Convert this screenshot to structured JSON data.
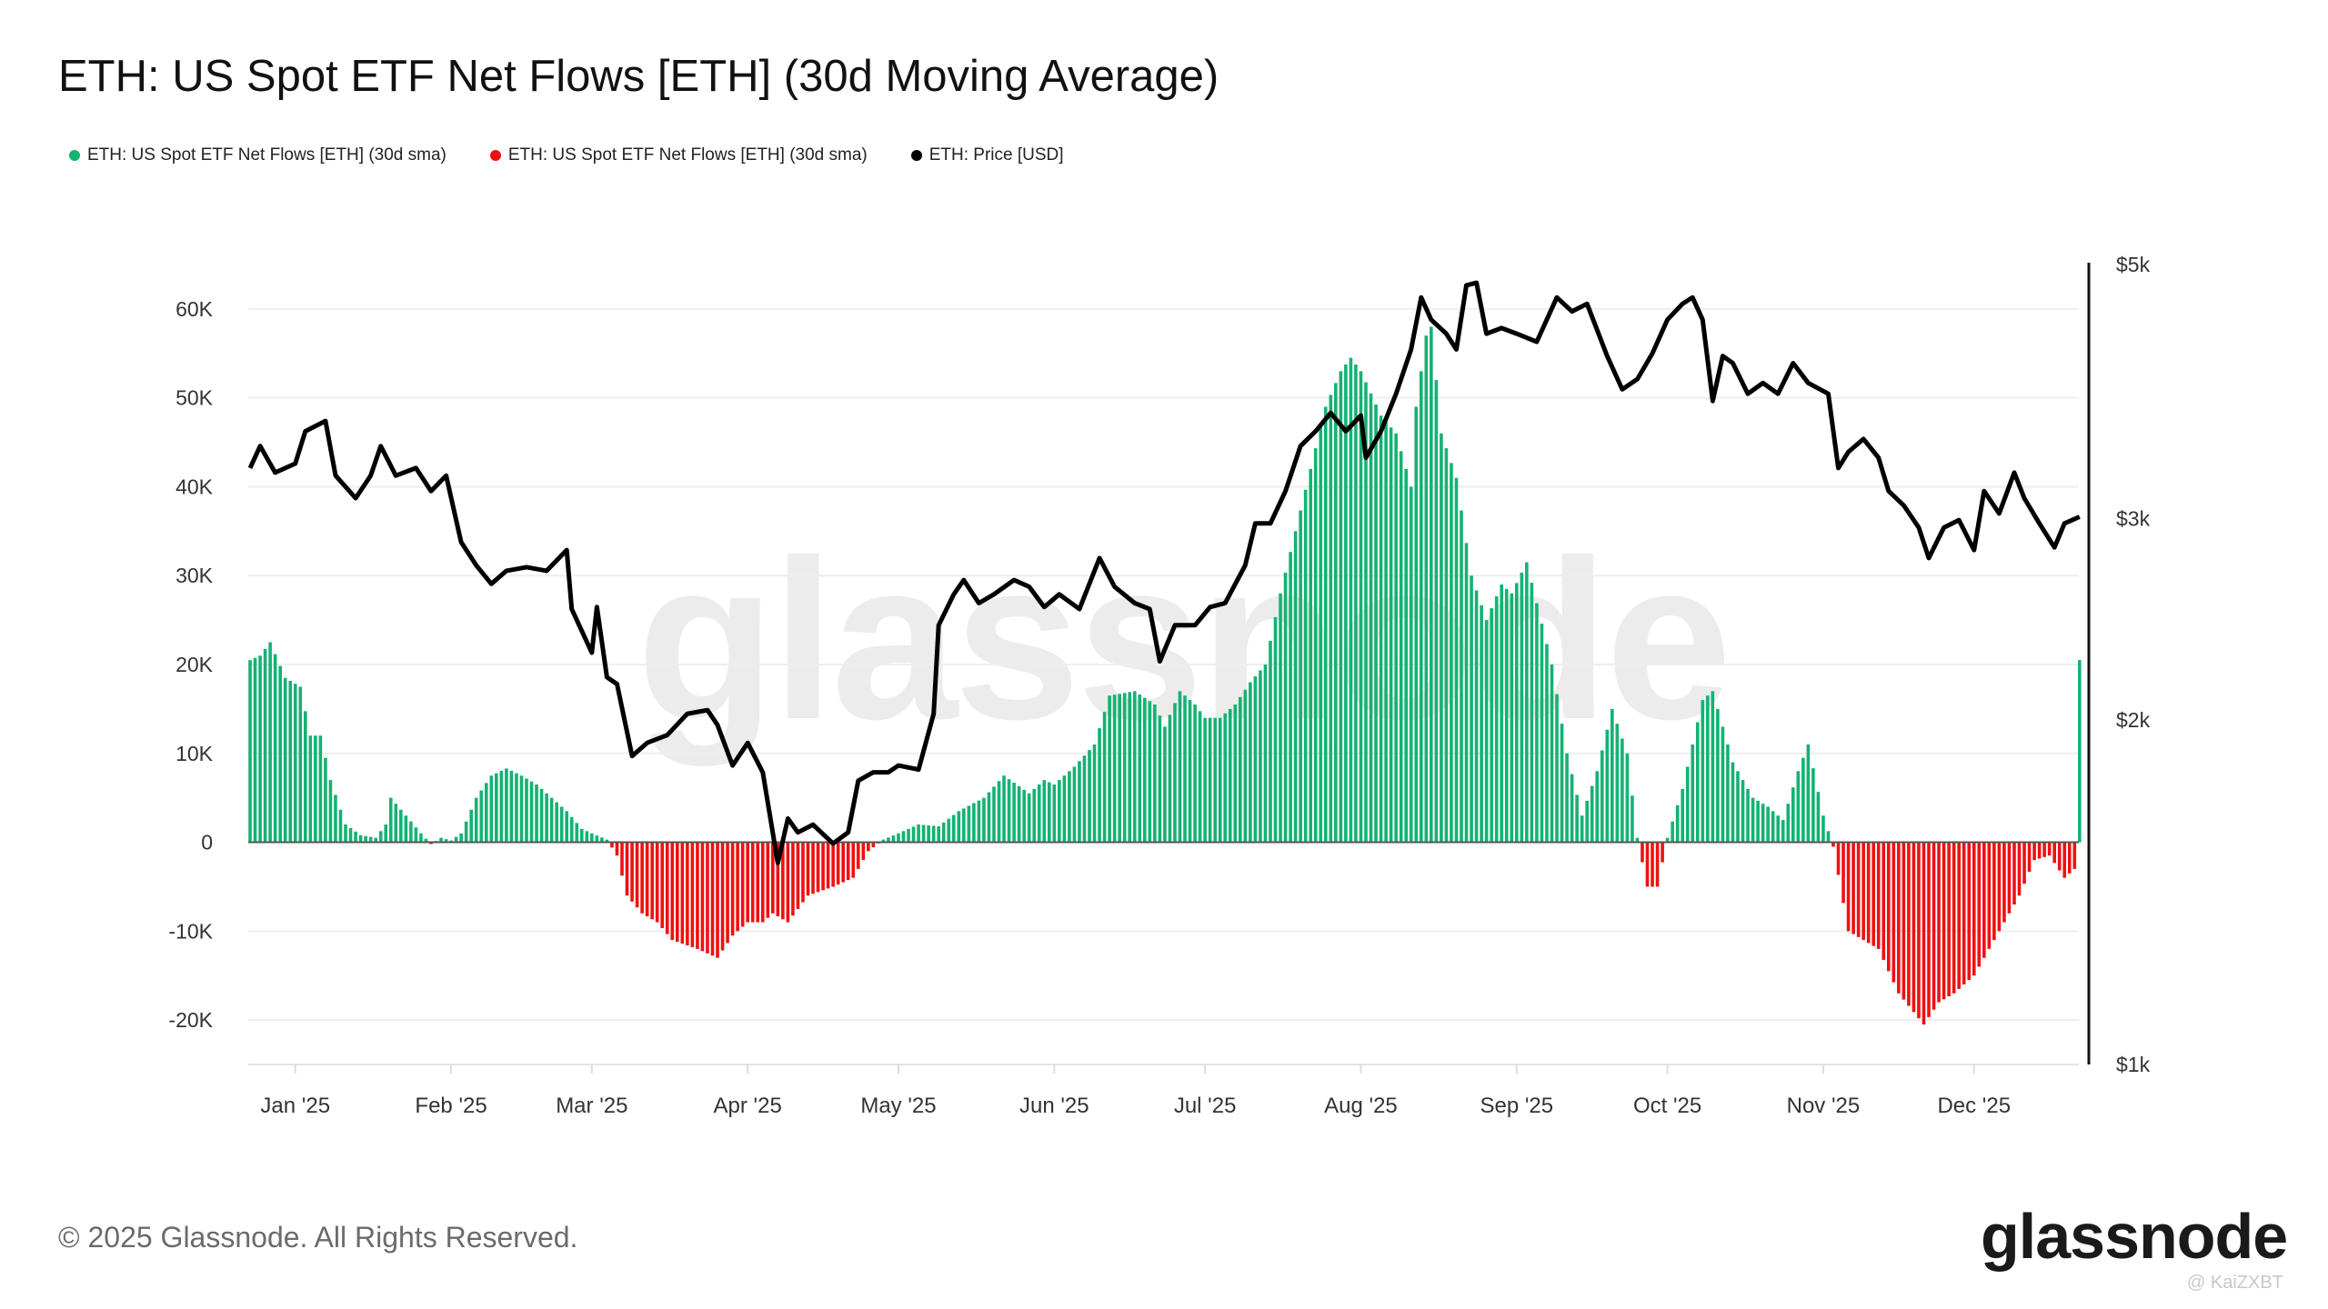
{
  "chart_data": {
    "type": "bar+line",
    "title": "ETH: US Spot ETF Net Flows [ETH] (30d Moving Average)",
    "legend": [
      {
        "label": "ETH: US Spot ETF Net Flows [ETH] (30d sma)",
        "color": "#14b273"
      },
      {
        "label": "ETH: US Spot ETF Net Flows [ETH] (30d sma)",
        "color": "#ee1111"
      },
      {
        "label": "ETH: Price [USD]",
        "color": "#000000"
      }
    ],
    "legend_placement": "top-left",
    "grid": true,
    "y_left": {
      "range": [
        -25000,
        65000
      ],
      "ticks": [
        {
          "value": 60000,
          "label": "60K"
        },
        {
          "value": 50000,
          "label": "50K"
        },
        {
          "value": 40000,
          "label": "40K"
        },
        {
          "value": 30000,
          "label": "30K"
        },
        {
          "value": 20000,
          "label": "20K"
        },
        {
          "value": 10000,
          "label": "10K"
        },
        {
          "value": 0,
          "label": "0"
        },
        {
          "value": -10000,
          "label": "-10K"
        },
        {
          "value": -20000,
          "label": "-20K"
        }
      ]
    },
    "y_right": {
      "scale": "log",
      "range": [
        1000,
        5000
      ],
      "ticks": [
        {
          "value": 5000,
          "label": "$5k"
        },
        {
          "value": 3000,
          "label": "$3k"
        },
        {
          "value": 2000,
          "label": "$2k"
        },
        {
          "value": 1000,
          "label": "$1k"
        }
      ]
    },
    "x_ticks": [
      {
        "date": "2025-01-01",
        "label": "Jan '25"
      },
      {
        "date": "2025-02-01",
        "label": "Feb '25"
      },
      {
        "date": "2025-03-01",
        "label": "Mar '25"
      },
      {
        "date": "2025-04-01",
        "label": "Apr '25"
      },
      {
        "date": "2025-05-01",
        "label": "May '25"
      },
      {
        "date": "2025-06-01",
        "label": "Jun '25"
      },
      {
        "date": "2025-07-01",
        "label": "Jul '25"
      },
      {
        "date": "2025-08-01",
        "label": "Aug '25"
      },
      {
        "date": "2025-09-01",
        "label": "Sep '25"
      },
      {
        "date": "2025-10-01",
        "label": "Oct '25"
      },
      {
        "date": "2025-11-01",
        "label": "Nov '25"
      },
      {
        "date": "2025-12-01",
        "label": "Dec '25"
      }
    ],
    "positive_color": "#14b273",
    "negative_color": "#ee1111",
    "flows": [
      [
        "2024-12-23",
        20500
      ],
      [
        "2024-12-25",
        21000
      ],
      [
        "2024-12-27",
        22500
      ],
      [
        "2024-12-30",
        18500
      ],
      [
        "2025-01-02",
        17500
      ],
      [
        "2025-01-04",
        12000
      ],
      [
        "2025-01-06",
        12000
      ],
      [
        "2025-01-08",
        7000
      ],
      [
        "2025-01-11",
        2000
      ],
      [
        "2025-01-14",
        800
      ],
      [
        "2025-01-17",
        500
      ],
      [
        "2025-01-19",
        2000
      ],
      [
        "2025-01-20",
        5000
      ],
      [
        "2025-01-23",
        3000
      ],
      [
        "2025-01-26",
        1000
      ],
      [
        "2025-01-28",
        -200
      ],
      [
        "2025-01-30",
        500
      ],
      [
        "2025-02-01",
        200
      ],
      [
        "2025-02-03",
        1000
      ],
      [
        "2025-02-06",
        5000
      ],
      [
        "2025-02-09",
        7500
      ],
      [
        "2025-02-12",
        8300
      ],
      [
        "2025-02-15",
        7500
      ],
      [
        "2025-02-18",
        6500
      ],
      [
        "2025-02-21",
        5000
      ],
      [
        "2025-02-24",
        3500
      ],
      [
        "2025-02-27",
        1500
      ],
      [
        "2025-03-01",
        1000
      ],
      [
        "2025-03-04",
        300
      ],
      [
        "2025-03-06",
        -1500
      ],
      [
        "2025-03-08",
        -6000
      ],
      [
        "2025-03-11",
        -8000
      ],
      [
        "2025-03-14",
        -9000
      ],
      [
        "2025-03-17",
        -11000
      ],
      [
        "2025-03-22",
        -12000
      ],
      [
        "2025-03-26",
        -13000
      ],
      [
        "2025-03-29",
        -10500
      ],
      [
        "2025-04-01",
        -9000
      ],
      [
        "2025-04-04",
        -9000
      ],
      [
        "2025-04-06",
        -8000
      ],
      [
        "2025-04-09",
        -9000
      ],
      [
        "2025-04-13",
        -6000
      ],
      [
        "2025-04-18",
        -5000
      ],
      [
        "2025-04-22",
        -4000
      ],
      [
        "2025-04-25",
        -1000
      ],
      [
        "2025-04-28",
        300
      ],
      [
        "2025-05-01",
        1000
      ],
      [
        "2025-05-05",
        2000
      ],
      [
        "2025-05-09",
        1800
      ],
      [
        "2025-05-13",
        3500
      ],
      [
        "2025-05-18",
        5000
      ],
      [
        "2025-05-22",
        7500
      ],
      [
        "2025-05-27",
        5500
      ],
      [
        "2025-05-30",
        7000
      ],
      [
        "2025-06-01",
        6500
      ],
      [
        "2025-06-05",
        8500
      ],
      [
        "2025-06-09",
        11000
      ],
      [
        "2025-06-12",
        16500
      ],
      [
        "2025-06-17",
        17000
      ],
      [
        "2025-06-21",
        15500
      ],
      [
        "2025-06-23",
        13000
      ],
      [
        "2025-06-26",
        17000
      ],
      [
        "2025-06-29",
        15500
      ],
      [
        "2025-07-01",
        14000
      ],
      [
        "2025-07-04",
        14000
      ],
      [
        "2025-07-07",
        15500
      ],
      [
        "2025-07-10",
        18000
      ],
      [
        "2025-07-13",
        20000
      ],
      [
        "2025-07-16",
        28000
      ],
      [
        "2025-07-19",
        35000
      ],
      [
        "2025-07-22",
        42000
      ],
      [
        "2025-07-25",
        49000
      ],
      [
        "2025-07-28",
        53000
      ],
      [
        "2025-07-30",
        54500
      ],
      [
        "2025-08-01",
        53000
      ],
      [
        "2025-08-05",
        48000
      ],
      [
        "2025-08-08",
        46000
      ],
      [
        "2025-08-11",
        40000
      ],
      [
        "2025-08-12",
        49000
      ],
      [
        "2025-08-14",
        57000
      ],
      [
        "2025-08-15",
        58000
      ],
      [
        "2025-08-17",
        46000
      ],
      [
        "2025-08-20",
        41000
      ],
      [
        "2025-08-23",
        30000
      ],
      [
        "2025-08-26",
        25000
      ],
      [
        "2025-08-29",
        29000
      ],
      [
        "2025-08-31",
        28000
      ],
      [
        "2025-09-03",
        31500
      ],
      [
        "2025-09-08",
        20000
      ],
      [
        "2025-09-11",
        10000
      ],
      [
        "2025-09-14",
        3000
      ],
      [
        "2025-09-17",
        8000
      ],
      [
        "2025-09-20",
        15000
      ],
      [
        "2025-09-23",
        10000
      ],
      [
        "2025-09-25",
        500
      ],
      [
        "2025-09-27",
        -5000
      ],
      [
        "2025-09-29",
        -5000
      ],
      [
        "2025-10-01",
        500
      ],
      [
        "2025-10-04",
        6000
      ],
      [
        "2025-10-08",
        16000
      ],
      [
        "2025-10-10",
        17000
      ],
      [
        "2025-10-14",
        9000
      ],
      [
        "2025-10-18",
        5000
      ],
      [
        "2025-10-21",
        4000
      ],
      [
        "2025-10-24",
        2500
      ],
      [
        "2025-10-27",
        8000
      ],
      [
        "2025-10-29",
        11000
      ],
      [
        "2025-11-01",
        3000
      ],
      [
        "2025-11-03",
        -500
      ],
      [
        "2025-11-06",
        -10000
      ],
      [
        "2025-11-12",
        -12000
      ],
      [
        "2025-11-16",
        -17000
      ],
      [
        "2025-11-21",
        -20500
      ],
      [
        "2025-11-24",
        -18000
      ],
      [
        "2025-11-27",
        -17000
      ],
      [
        "2025-12-01",
        -15000
      ],
      [
        "2025-12-06",
        -10000
      ],
      [
        "2025-12-10",
        -6000
      ],
      [
        "2025-12-13",
        -2000
      ],
      [
        "2025-12-16",
        -1500
      ],
      [
        "2025-12-19",
        -4000
      ],
      [
        "2025-12-22",
        -2500
      ]
    ],
    "price": [
      [
        "2024-12-23",
        3320
      ],
      [
        "2024-12-25",
        3470
      ],
      [
        "2024-12-28",
        3290
      ],
      [
        "2025-01-01",
        3350
      ],
      [
        "2025-01-03",
        3575
      ],
      [
        "2025-01-07",
        3650
      ],
      [
        "2025-01-09",
        3270
      ],
      [
        "2025-01-13",
        3125
      ],
      [
        "2025-01-16",
        3270
      ],
      [
        "2025-01-18",
        3470
      ],
      [
        "2025-01-21",
        3270
      ],
      [
        "2025-01-25",
        3320
      ],
      [
        "2025-01-28",
        3170
      ],
      [
        "2025-01-31",
        3270
      ],
      [
        "2025-02-03",
        2860
      ],
      [
        "2025-02-06",
        2730
      ],
      [
        "2025-02-09",
        2630
      ],
      [
        "2025-02-12",
        2700
      ],
      [
        "2025-02-16",
        2720
      ],
      [
        "2025-02-20",
        2700
      ],
      [
        "2025-02-24",
        2815
      ],
      [
        "2025-02-25",
        2500
      ],
      [
        "2025-03-01",
        2290
      ],
      [
        "2025-03-02",
        2510
      ],
      [
        "2025-03-04",
        2180
      ],
      [
        "2025-03-06",
        2150
      ],
      [
        "2025-03-09",
        1860
      ],
      [
        "2025-03-12",
        1910
      ],
      [
        "2025-03-16",
        1940
      ],
      [
        "2025-03-20",
        2025
      ],
      [
        "2025-03-24",
        2040
      ],
      [
        "2025-03-26",
        1980
      ],
      [
        "2025-03-29",
        1825
      ],
      [
        "2025-04-01",
        1910
      ],
      [
        "2025-04-04",
        1800
      ],
      [
        "2025-04-07",
        1500
      ],
      [
        "2025-04-09",
        1640
      ],
      [
        "2025-04-11",
        1595
      ],
      [
        "2025-04-14",
        1620
      ],
      [
        "2025-04-18",
        1560
      ],
      [
        "2025-04-21",
        1595
      ],
      [
        "2025-04-23",
        1770
      ],
      [
        "2025-04-26",
        1800
      ],
      [
        "2025-04-29",
        1800
      ],
      [
        "2025-05-01",
        1825
      ],
      [
        "2025-05-05",
        1810
      ],
      [
        "2025-05-08",
        2025
      ],
      [
        "2025-05-09",
        2420
      ],
      [
        "2025-05-12",
        2575
      ],
      [
        "2025-05-14",
        2650
      ],
      [
        "2025-05-17",
        2530
      ],
      [
        "2025-05-20",
        2575
      ],
      [
        "2025-05-24",
        2650
      ],
      [
        "2025-05-27",
        2615
      ],
      [
        "2025-05-30",
        2510
      ],
      [
        "2025-06-02",
        2575
      ],
      [
        "2025-06-06",
        2500
      ],
      [
        "2025-06-10",
        2770
      ],
      [
        "2025-06-13",
        2615
      ],
      [
        "2025-06-17",
        2530
      ],
      [
        "2025-06-20",
        2500
      ],
      [
        "2025-06-22",
        2250
      ],
      [
        "2025-06-25",
        2420
      ],
      [
        "2025-06-29",
        2420
      ],
      [
        "2025-07-02",
        2510
      ],
      [
        "2025-07-05",
        2530
      ],
      [
        "2025-07-09",
        2730
      ],
      [
        "2025-07-11",
        2970
      ],
      [
        "2025-07-14",
        2970
      ],
      [
        "2025-07-17",
        3170
      ],
      [
        "2025-07-20",
        3470
      ],
      [
        "2025-07-23",
        3575
      ],
      [
        "2025-07-26",
        3710
      ],
      [
        "2025-07-29",
        3575
      ],
      [
        "2025-08-01",
        3690
      ],
      [
        "2025-08-02",
        3390
      ],
      [
        "2025-08-05",
        3575
      ],
      [
        "2025-08-08",
        3855
      ],
      [
        "2025-08-11",
        4215
      ],
      [
        "2025-08-13",
        4680
      ],
      [
        "2025-08-15",
        4475
      ],
      [
        "2025-08-18",
        4350
      ],
      [
        "2025-08-20",
        4215
      ],
      [
        "2025-08-22",
        4795
      ],
      [
        "2025-08-24",
        4820
      ],
      [
        "2025-08-26",
        4350
      ],
      [
        "2025-08-29",
        4400
      ],
      [
        "2025-09-01",
        4350
      ],
      [
        "2025-09-05",
        4280
      ],
      [
        "2025-09-09",
        4680
      ],
      [
        "2025-09-12",
        4550
      ],
      [
        "2025-09-15",
        4620
      ],
      [
        "2025-09-19",
        4160
      ],
      [
        "2025-09-22",
        3890
      ],
      [
        "2025-09-25",
        3970
      ],
      [
        "2025-09-28",
        4180
      ],
      [
        "2025-10-01",
        4475
      ],
      [
        "2025-10-04",
        4620
      ],
      [
        "2025-10-06",
        4680
      ],
      [
        "2025-10-08",
        4475
      ],
      [
        "2025-10-10",
        3800
      ],
      [
        "2025-10-12",
        4160
      ],
      [
        "2025-10-14",
        4100
      ],
      [
        "2025-10-17",
        3855
      ],
      [
        "2025-10-20",
        3940
      ],
      [
        "2025-10-23",
        3855
      ],
      [
        "2025-10-26",
        4100
      ],
      [
        "2025-10-29",
        3940
      ],
      [
        "2025-11-02",
        3855
      ],
      [
        "2025-11-04",
        3320
      ],
      [
        "2025-11-06",
        3430
      ],
      [
        "2025-11-09",
        3520
      ],
      [
        "2025-11-12",
        3390
      ],
      [
        "2025-11-14",
        3170
      ],
      [
        "2025-11-17",
        3080
      ],
      [
        "2025-11-20",
        2945
      ],
      [
        "2025-11-22",
        2770
      ],
      [
        "2025-11-25",
        2945
      ],
      [
        "2025-11-28",
        2990
      ],
      [
        "2025-12-01",
        2815
      ],
      [
        "2025-12-03",
        3170
      ],
      [
        "2025-12-06",
        3030
      ],
      [
        "2025-12-09",
        3290
      ],
      [
        "2025-12-11",
        3125
      ],
      [
        "2025-12-14",
        2970
      ],
      [
        "2025-12-17",
        2830
      ],
      [
        "2025-12-19",
        2970
      ],
      [
        "2025-12-22",
        3010
      ]
    ]
  },
  "watermark": "glassnode",
  "footer": {
    "copyright": "© 2025 Glassnode. All Rights Reserved.",
    "logo": "glassnode",
    "credit": "@ KaiZXBT"
  }
}
